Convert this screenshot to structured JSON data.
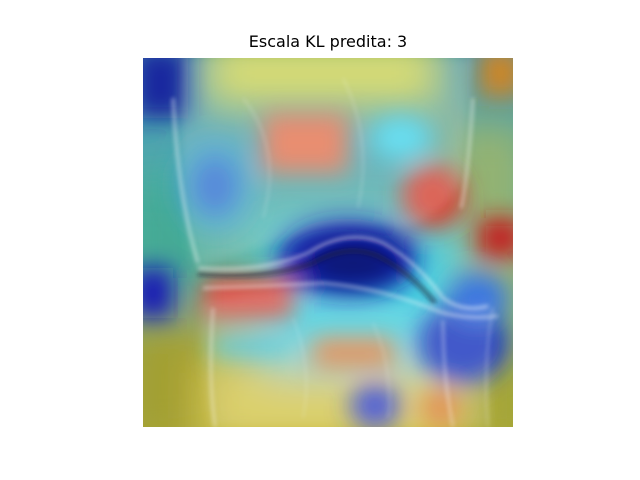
{
  "figure": {
    "title": "Escala KL predita: 3"
  },
  "image": {
    "content": "knee X-ray with Grad-CAM heatmap overlay",
    "colormap": "jet",
    "colors": {
      "low": "#00008f",
      "mid_low": "#00d0ff",
      "mid": "#e6e64a",
      "high": "#d62020",
      "border_base": "#8a8a1c"
    }
  }
}
